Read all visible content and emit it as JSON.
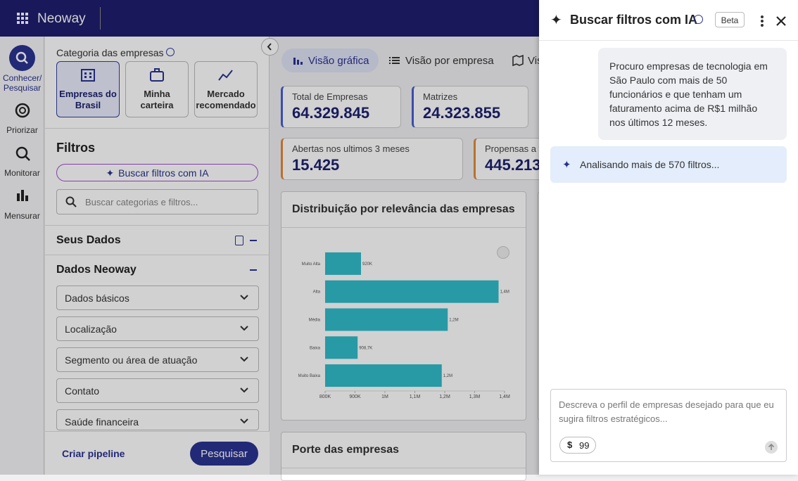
{
  "topbar": {
    "logo": "Neoway"
  },
  "nav": [
    "Conhecer/ Pesquisar",
    "Priorizar",
    "Monitorar",
    "Mensurar"
  ],
  "filters": {
    "category_title": "Categoria das empresas",
    "categories": [
      "Empresas do Brasil",
      "Minha carteira",
      "Mercado recomendado"
    ],
    "title": "Filtros",
    "ai_button": "Buscar filtros com IA",
    "search_placeholder": "Buscar categorias e filtros...",
    "sections": [
      "Seus Dados",
      "Dados Neoway"
    ],
    "items": [
      "Dados básicos",
      "Localização",
      "Segmento ou área de atuação",
      "Contato",
      "Saúde financeira"
    ],
    "create_pipeline": "Criar pipeline",
    "search_button": "Pesquisar"
  },
  "tabs": [
    "Visão gráfica",
    "Visão por empresa",
    "Vis"
  ],
  "kpis": [
    {
      "label": "Total de Empresas",
      "value": "64.329.845"
    },
    {
      "label": "Matrizes",
      "value": "24.323.855"
    },
    {
      "label": "Abertas nos ultimos 3 meses",
      "value": "15.425"
    },
    {
      "label": "Propensas a f",
      "value": "445.213"
    }
  ],
  "cards": [
    "Distribuição por relevância das empresas",
    "Porte das empresas"
  ],
  "panel": {
    "title": "Buscar filtros com IA",
    "badge": "Beta",
    "user_message": "Procuro empresas de tecnologia em São Paulo com mais de 50 funcionários e que tenham um faturamento acima de R$1 milhão nos últimos 12 meses.",
    "status": "Analisando mais de 570 filtros...",
    "input_placeholder": "Descreva o perfil de empresas desejado para que eu sugira filtros estratégicos...",
    "credits": 99
  },
  "chart_data": {
    "type": "hbar",
    "categories": [
      "Muito Alta",
      "Alta",
      "Média",
      "Baixa",
      "Muito Baixa"
    ],
    "values": [
      920000,
      1380000,
      1210000,
      908700,
      1190000
    ],
    "value_labels": [
      "920K",
      "1,4M",
      "1,2M",
      "908,7K",
      "1,2M"
    ],
    "color": "#30bccb",
    "xlim": [
      800000,
      1400000
    ],
    "xticks": [
      {
        "value": 800000,
        "label": "800K"
      },
      {
        "value": 900000,
        "label": "900K"
      },
      {
        "value": 1000000,
        "label": "1M"
      },
      {
        "value": 1100000,
        "label": "1,1M"
      },
      {
        "value": 1200000,
        "label": "1,2M"
      },
      {
        "value": 1300000,
        "label": "1,3M"
      },
      {
        "value": 1400000,
        "label": "1,4M"
      }
    ]
  }
}
